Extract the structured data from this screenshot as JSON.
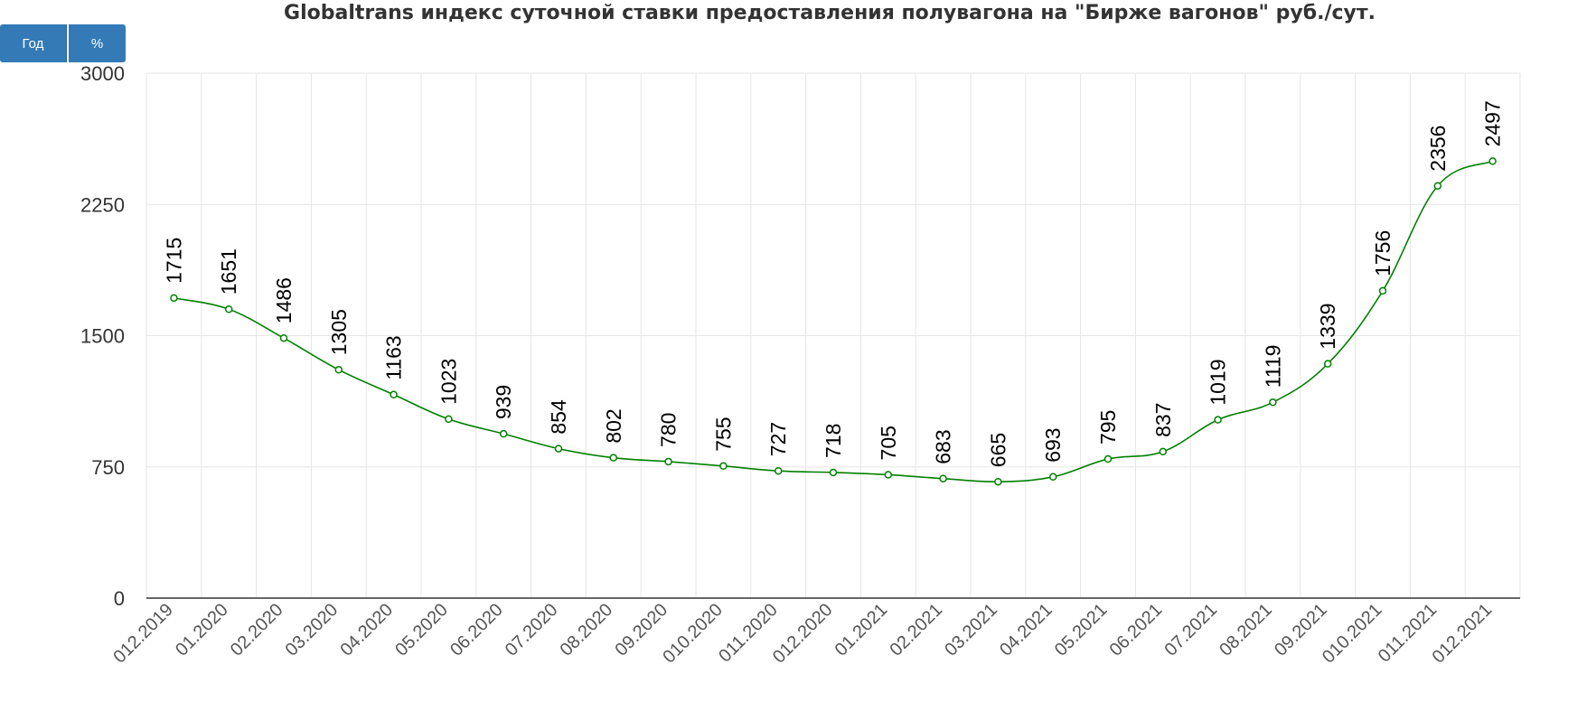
{
  "controls": {
    "year_label": "Год",
    "percent_label": "%"
  },
  "chart_data": {
    "type": "line",
    "title": "Globaltrans индекс суточной ставки предоставления полувагона на \"Бирже вагонов\" руб./сут.",
    "xlabel": "",
    "ylabel": "",
    "ylim": [
      0,
      3000
    ],
    "yticks": [
      "0",
      "750",
      "1500",
      "2250",
      "3000"
    ],
    "grid": true,
    "color": "#008000",
    "categories": [
      "012.2019",
      "01.2020",
      "02.2020",
      "03.2020",
      "04.2020",
      "05.2020",
      "06.2020",
      "07.2020",
      "08.2020",
      "09.2020",
      "010.2020",
      "011.2020",
      "012.2020",
      "01.2021",
      "02.2021",
      "03.2021",
      "04.2021",
      "05.2021",
      "06.2021",
      "07.2021",
      "08.2021",
      "09.2021",
      "010.2021",
      "011.2021",
      "012.2021"
    ],
    "values": [
      1715,
      1651,
      1486,
      1305,
      1163,
      1023,
      939,
      854,
      802,
      780,
      755,
      727,
      718,
      705,
      683,
      665,
      693,
      795,
      837,
      1019,
      1119,
      1339,
      1756,
      2356,
      2497
    ]
  }
}
